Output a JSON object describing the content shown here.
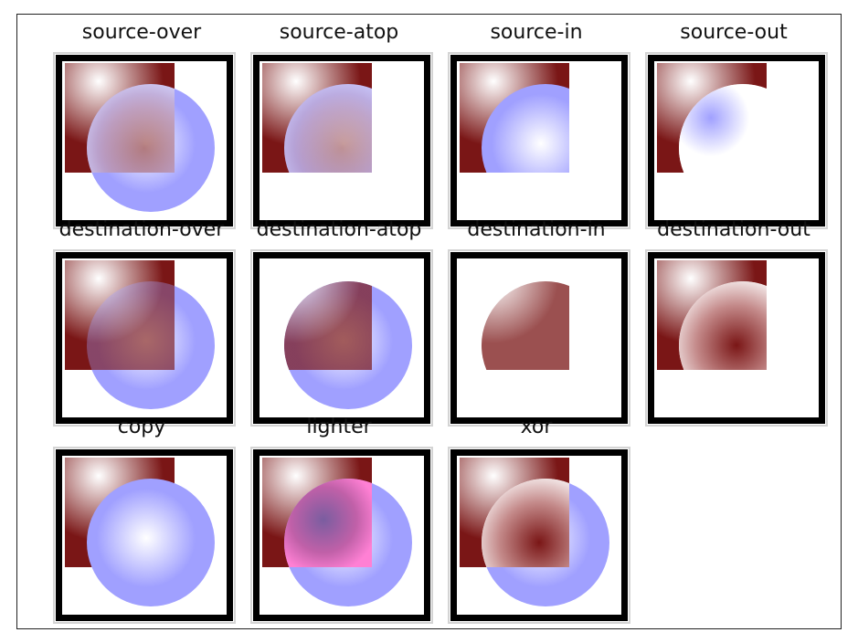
{
  "colors": {
    "destination_square": "#7a1616",
    "destination_highlight": "#ffffff",
    "source_circle": "#a0a0ff",
    "source_highlight": "#ffffff",
    "lighter_overlap": "#ff80d4",
    "box_border": "#000000"
  },
  "operations": [
    {
      "label": "source-over",
      "mode": "source-over"
    },
    {
      "label": "source-atop",
      "mode": "source-atop"
    },
    {
      "label": "source-in",
      "mode": "source-in"
    },
    {
      "label": "source-out",
      "mode": "source-out"
    },
    {
      "label": "destination-over",
      "mode": "destination-over"
    },
    {
      "label": "destination-atop",
      "mode": "destination-atop"
    },
    {
      "label": "destination-in",
      "mode": "destination-in"
    },
    {
      "label": "destination-out",
      "mode": "destination-out"
    },
    {
      "label": "copy",
      "mode": "copy"
    },
    {
      "label": "lighter",
      "mode": "lighter"
    },
    {
      "label": "xor",
      "mode": "xor"
    }
  ]
}
